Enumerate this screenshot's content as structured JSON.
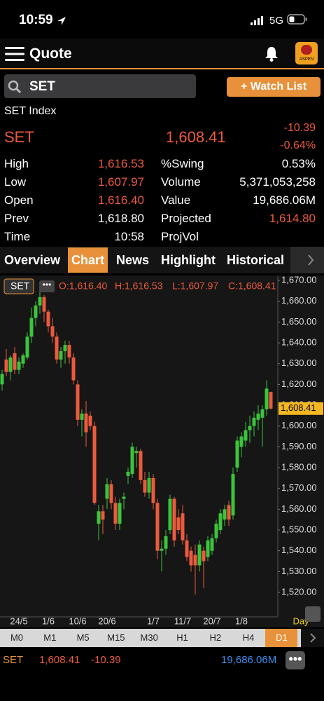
{
  "status": {
    "time": "10:59",
    "network": "5G"
  },
  "header": {
    "title": "Quote",
    "logo": "ASPEN"
  },
  "search": {
    "query": "SET",
    "button": "+ Watch List"
  },
  "quote": {
    "index_name": "SET Index",
    "symbol": "SET",
    "last": "1,608.41",
    "change": "-10.39",
    "change_pct": "-0.64%",
    "left": [
      {
        "label": "High",
        "value": "1,616.53",
        "color": "#ec5a3e"
      },
      {
        "label": "Low",
        "value": "1,607.97",
        "color": "#ec5a3e"
      },
      {
        "label": "Open",
        "value": "1,616.40",
        "color": "#ec5a3e"
      },
      {
        "label": "Prev",
        "value": "1,618.80",
        "color": "#ffffff"
      },
      {
        "label": "Time",
        "value": "10:58",
        "color": "#ffffff"
      }
    ],
    "right": [
      {
        "label": "%Swing",
        "value": "0.53%",
        "color": "#ffffff"
      },
      {
        "label": "Volume",
        "value": "5,371,053,258",
        "color": "#ffffff"
      },
      {
        "label": "Value",
        "value": "19,686.06M",
        "color": "#ffffff"
      },
      {
        "label": "Projected",
        "value": "1,614.80",
        "color": "#ec5a3e"
      },
      {
        "label": "ProjVol"
      }
    ]
  },
  "tabs": {
    "items": [
      "Overview",
      "Chart",
      "News",
      "Highlight",
      "Historical"
    ],
    "active": 1
  },
  "chart_data": {
    "type": "candlestick",
    "symbol": "SET",
    "ohlc_text": [
      "O:1,616.40",
      "H:1,616.53",
      "L:1,607.97",
      "C:1,608.41"
    ],
    "period": "Day",
    "categories": [
      null,
      null,
      null,
      null,
      "24/5",
      null,
      null,
      null,
      null,
      null,
      null,
      "1/6",
      null,
      null,
      null,
      null,
      null,
      null,
      "10/6",
      null,
      null,
      null,
      null,
      null,
      null,
      "20/6",
      null,
      null,
      null,
      null,
      null,
      null,
      null,
      null,
      null,
      null,
      "1/7",
      null,
      null,
      null,
      null,
      null,
      null,
      "11/7",
      null,
      null,
      null,
      null,
      null,
      null,
      "20/7",
      null,
      null,
      null,
      null,
      null,
      null,
      "1/8",
      null,
      null,
      null,
      null,
      null,
      null,
      null
    ],
    "open": [
      1620,
      1632,
      1626,
      1635,
      1627,
      1630,
      1633,
      1643,
      1652,
      1658,
      1662,
      1655,
      1648,
      1643,
      1632,
      1636,
      1639,
      1633,
      1620,
      1603,
      1606,
      1605,
      1600,
      1553,
      1559,
      1565,
      1572,
      1563,
      1553,
      1565,
      1576,
      1577,
      1587,
      1588,
      1574,
      1568,
      1575,
      1563,
      1540,
      1541,
      1550,
      1565,
      1556,
      1558,
      1545,
      1540,
      1538,
      1533,
      1540,
      1537,
      1540,
      1546,
      1550,
      1555,
      1562,
      1557,
      1580,
      1590,
      1593,
      1598,
      1600,
      1603,
      1604,
      1608,
      1616.4
    ],
    "high": [
      1627,
      1637,
      1634,
      1638,
      1633,
      1635,
      1645,
      1657,
      1660,
      1665,
      1663,
      1656,
      1652,
      1645,
      1638,
      1641,
      1641,
      1635,
      1622,
      1608,
      1612,
      1607,
      1602,
      1562,
      1562,
      1575,
      1574,
      1566,
      1565,
      1568,
      1580,
      1592,
      1590,
      1589,
      1578,
      1578,
      1577,
      1565,
      1545,
      1550,
      1567,
      1566,
      1560,
      1562,
      1548,
      1542,
      1543,
      1545,
      1542,
      1547,
      1548,
      1555,
      1560,
      1562,
      1564,
      1580,
      1595,
      1597,
      1602,
      1605,
      1607,
      1610,
      1610,
      1622,
      1616.53
    ],
    "low": [
      1617,
      1624,
      1622,
      1625,
      1625,
      1628,
      1632,
      1640,
      1648,
      1654,
      1650,
      1645,
      1640,
      1630,
      1628,
      1630,
      1630,
      1620,
      1600,
      1595,
      1590,
      1598,
      1562,
      1545,
      1548,
      1560,
      1560,
      1550,
      1550,
      1560,
      1572,
      1575,
      1580,
      1572,
      1566,
      1565,
      1560,
      1536,
      1530,
      1538,
      1548,
      1542,
      1548,
      1543,
      1535,
      1530,
      1519,
      1530,
      1522,
      1535,
      1538,
      1544,
      1548,
      1552,
      1552,
      1555,
      1578,
      1585,
      1590,
      1592,
      1595,
      1598,
      1590,
      1605,
      1607.97
    ],
    "close": [
      1625,
      1626,
      1633,
      1627,
      1631,
      1634,
      1643,
      1652,
      1658,
      1662,
      1655,
      1648,
      1643,
      1632,
      1636,
      1639,
      1633,
      1622,
      1603,
      1606,
      1597,
      1600,
      1563,
      1559,
      1555,
      1572,
      1563,
      1553,
      1563,
      1566,
      1578,
      1590,
      1588,
      1574,
      1568,
      1575,
      1563,
      1540,
      1541,
      1547,
      1565,
      1545,
      1550,
      1545,
      1537,
      1533,
      1533,
      1543,
      1535,
      1545,
      1546,
      1553,
      1558,
      1560,
      1555,
      1577,
      1593,
      1595,
      1598,
      1600,
      1604,
      1606,
      1608,
      1618,
      1608.41
    ],
    "up_color": "#3cc43c",
    "down_color": "#ec5a3e",
    "ylim": [
      1508.2,
      1672.4
    ],
    "yticks": [
      {
        "value": 1520,
        "label": "1,520.00"
      },
      {
        "value": 1530,
        "label": "1,530.00"
      },
      {
        "value": 1540,
        "label": "1,540.00"
      },
      {
        "value": 1550,
        "label": "1,550.00"
      },
      {
        "value": 1560,
        "label": "1,560.00"
      },
      {
        "value": 1570,
        "label": "1,570.00"
      },
      {
        "value": 1580,
        "label": "1,580.00"
      },
      {
        "value": 1590,
        "label": "1,590.00"
      },
      {
        "value": 1600,
        "label": "1,600.00"
      },
      {
        "value": 1610,
        "label": "1,610.00"
      },
      {
        "value": 1620,
        "label": "1,620.00"
      },
      {
        "value": 1630,
        "label": "1,630.00"
      },
      {
        "value": 1640,
        "label": "1,640.00"
      },
      {
        "value": 1650,
        "label": "1,650.00"
      },
      {
        "value": 1660,
        "label": "1,660.00"
      },
      {
        "value": 1670,
        "label": "1,670.00"
      }
    ],
    "last_price": {
      "value": 1608.41,
      "label": "1,608.41"
    }
  },
  "timeframes": {
    "items": [
      "M0",
      "M1",
      "M5",
      "M15",
      "M30",
      "H1",
      "H2",
      "H4",
      "D1"
    ],
    "active": 8
  },
  "footer": {
    "symbol": "SET",
    "last": "1,608.41",
    "change": "-10.39",
    "value": "19,686.06M"
  }
}
